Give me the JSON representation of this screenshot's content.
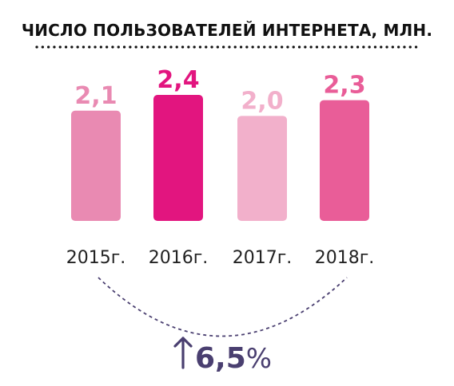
{
  "chart_data": {
    "type": "bar",
    "title": "ЧИСЛО ПОЛЬЗОВАТЕЛЕЙ ИНТЕРНЕТА, МЛН.",
    "categories": [
      "2015г.",
      "2016г.",
      "2017г.",
      "2018г."
    ],
    "values": [
      2.1,
      2.4,
      2.0,
      2.3
    ],
    "value_labels": [
      "2,1",
      "2,4",
      "2,0",
      "2,3"
    ],
    "bar_colors": [
      "#e98ab2",
      "#e2157f",
      "#f2b0cb",
      "#e95d98"
    ],
    "label_colors": [
      "#e98ab2",
      "#e2157f",
      "#f2b0cb",
      "#e95d98"
    ],
    "ylim": [
      0,
      2.4
    ],
    "grid": false,
    "legend": "none",
    "growth": {
      "arrow_icon": "up-arrow-icon",
      "value": "6,5",
      "unit": "%",
      "color": "#4a3f70"
    }
  }
}
